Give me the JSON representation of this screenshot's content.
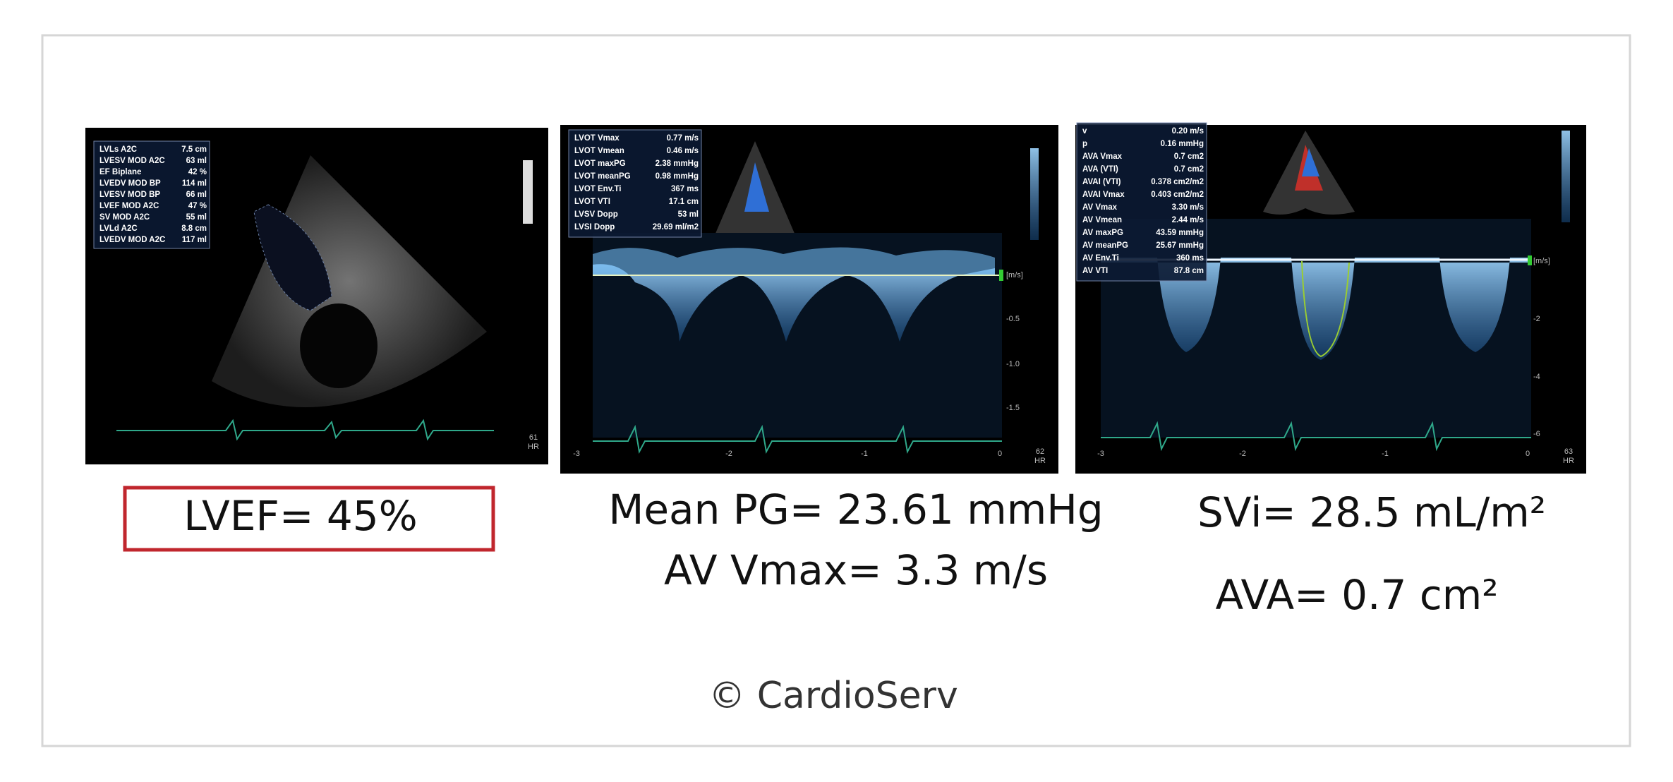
{
  "panels": [
    {
      "measurements": [
        {
          "label": "LVLs A2C",
          "value": "7.5 cm"
        },
        {
          "label": "LVESV MOD A2C",
          "value": "63 ml"
        },
        {
          "label": "EF Biplane",
          "value": "42 %"
        },
        {
          "label": "LVEDV MOD BP",
          "value": "114 ml"
        },
        {
          "label": "LVESV MOD BP",
          "value": "66 ml"
        },
        {
          "label": "LVEF MOD A2C",
          "value": "47 %"
        },
        {
          "label": "SV MOD A2C",
          "value": "55 ml"
        },
        {
          "label": "LVLd A2C",
          "value": "8.8 cm"
        },
        {
          "label": "LVEDV MOD A2C",
          "value": "117 ml"
        }
      ],
      "hr": "61",
      "hr_unit": "HR"
    },
    {
      "measurements": [
        {
          "label": "LVOT Vmax",
          "value": "0.77 m/s"
        },
        {
          "label": "LVOT Vmean",
          "value": "0.46 m/s"
        },
        {
          "label": "LVOT maxPG",
          "value": "2.38 mmHg"
        },
        {
          "label": "LVOT meanPG",
          "value": "0.98 mmHg"
        },
        {
          "label": "LVOT Env.Ti",
          "value": "367 ms"
        },
        {
          "label": "LVOT VTI",
          "value": "17.1 cm"
        },
        {
          "label": "LVSV Dopp",
          "value": "53 ml"
        },
        {
          "label": "LVSI Dopp",
          "value": "29.69 ml/m2"
        }
      ],
      "y_axis": [
        "[m/s]",
        "-0.5",
        "-1.0",
        "-1.5"
      ],
      "x_axis": [
        "-3",
        "-2",
        "-1",
        "0"
      ],
      "hr": "62",
      "hr_unit": "HR"
    },
    {
      "measurements": [
        {
          "label": "v",
          "value": "0.20 m/s"
        },
        {
          "label": "p",
          "value": "0.16 mmHg"
        },
        {
          "label": "AVA Vmax",
          "value": "0.7 cm2"
        },
        {
          "label": "AVA (VTI)",
          "value": "0.7 cm2"
        },
        {
          "label": "AVAI (VTI)",
          "value": "0.378 cm2/m2"
        },
        {
          "label": "AVAI Vmax",
          "value": "0.403 cm2/m2"
        },
        {
          "label": "AV Vmax",
          "value": "3.30 m/s"
        },
        {
          "label": "AV Vmean",
          "value": "2.44 m/s"
        },
        {
          "label": "AV maxPG",
          "value": "43.59 mmHg"
        },
        {
          "label": "AV meanPG",
          "value": "25.67 mmHg"
        },
        {
          "label": "AV Env.Ti",
          "value": "360 ms"
        },
        {
          "label": "AV VTI",
          "value": "87.8 cm"
        }
      ],
      "y_axis": [
        "[m/s]",
        "-2",
        "-4",
        "-6"
      ],
      "x_axis": [
        "-3",
        "-2",
        "-1",
        "0"
      ],
      "hr": "63",
      "hr_unit": "HR"
    }
  ],
  "captions": {
    "lvef": "LVEF= 45%",
    "mean_pg": "Mean PG= 23.61 mmHg",
    "av_vmax": "AV Vmax= 3.3 m/s",
    "svi": "SVi= 28.5 mL/m²",
    "ava": "AVA= 0.7 cm²"
  },
  "copyright": "© CardioServ"
}
